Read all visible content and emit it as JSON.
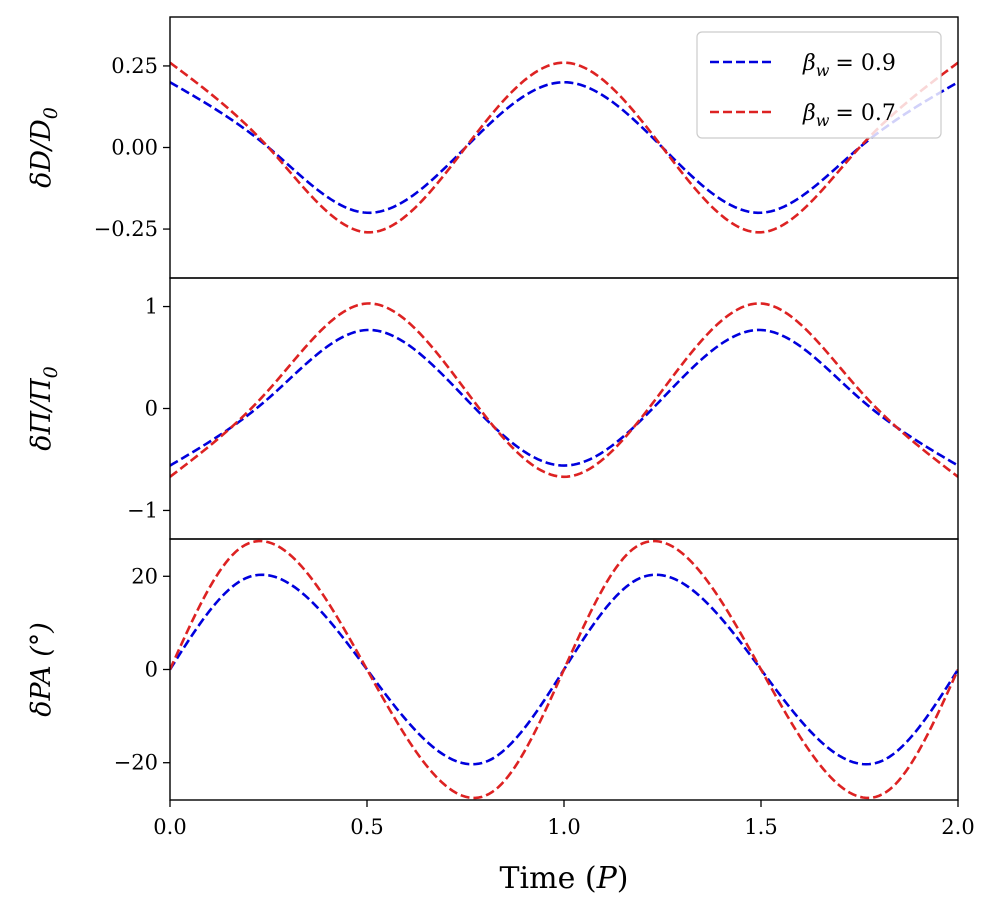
{
  "chart_data": {
    "type": "line",
    "shared_x": {
      "label": "Time (P)",
      "label_parts": {
        "pre": "Time (",
        "var": "P",
        "post": ")"
      },
      "range": [
        0.0,
        2.0
      ],
      "ticks": [
        0.0,
        0.5,
        1.0,
        1.5,
        2.0
      ],
      "tick_labels": [
        "0.0",
        "0.5",
        "1.0",
        "1.5",
        "2.0"
      ]
    },
    "series_styles": [
      {
        "name": "β_w = 0.9",
        "color": "#0000dd",
        "dash": "dashed"
      },
      {
        "name": "β_w = 0.7",
        "color": "#dd2222",
        "dash": "dashed"
      }
    ],
    "legend": {
      "placement": "top-right of top panel",
      "entries": [
        {
          "symbol": "β",
          "subscript": "w",
          "eq": "= 0.9",
          "color": "#0000dd"
        },
        {
          "symbol": "β",
          "subscript": "w",
          "eq": "= 0.7",
          "color": "#dd2222"
        }
      ]
    },
    "panels": [
      {
        "id": "dD",
        "ylabel": "δD/D₀",
        "ylabel_parts": {
          "main": "δD/D",
          "sub": "0"
        },
        "ylim": [
          -0.4,
          0.4
        ],
        "ticks": [
          -0.25,
          0.0,
          0.25
        ],
        "tick_labels": [
          "−0.25",
          "0.00",
          "0.25"
        ],
        "series": [
          {
            "name": "β_w = 0.9",
            "x": [
              0.0,
              0.25,
              0.5,
              0.75,
              1.0,
              1.25,
              1.5,
              1.75,
              2.0
            ],
            "values": [
              0.2,
              0.0,
              -0.2,
              0.0,
              0.2,
              0.0,
              -0.2,
              0.0,
              0.2
            ]
          },
          {
            "name": "β_w = 0.7",
            "x": [
              0.0,
              0.25,
              0.5,
              0.75,
              1.0,
              1.25,
              1.5,
              1.75,
              2.0
            ],
            "values": [
              0.26,
              0.0,
              -0.26,
              0.0,
              0.26,
              0.0,
              -0.26,
              0.0,
              0.26
            ]
          }
        ]
      },
      {
        "id": "dPi",
        "ylabel": "δΠ/Π₀",
        "ylabel_parts": {
          "main": "δΠ/Π",
          "sub": "0"
        },
        "ylim": [
          -1.28,
          1.28
        ],
        "ticks": [
          -1,
          0,
          1
        ],
        "tick_labels": [
          "−1",
          "0",
          "1"
        ],
        "series": [
          {
            "name": "β_w = 0.9",
            "x": [
              0.0,
              0.25,
              0.5,
              0.75,
              1.0,
              1.25,
              1.5,
              1.75,
              2.0
            ],
            "values": [
              -0.56,
              0.1,
              0.77,
              0.1,
              -0.56,
              0.1,
              0.77,
              0.1,
              -0.56
            ]
          },
          {
            "name": "β_w = 0.7",
            "x": [
              0.0,
              0.25,
              0.5,
              0.75,
              1.0,
              1.25,
              1.5,
              1.75,
              2.0
            ],
            "values": [
              -0.67,
              0.18,
              1.03,
              0.18,
              -0.67,
              0.18,
              1.03,
              0.18,
              -0.67
            ]
          }
        ]
      },
      {
        "id": "dPA",
        "ylabel": "δPA (°)",
        "ylim": [
          -28,
          28
        ],
        "ticks": [
          -20,
          0,
          20
        ],
        "tick_labels": [
          "−20",
          "0",
          "20"
        ],
        "series": [
          {
            "name": "β_w = 0.9",
            "x": [
              0.0,
              0.19,
              0.5,
              0.81,
              1.0,
              1.19,
              1.5,
              1.81,
              2.0
            ],
            "values": [
              0.0,
              19.5,
              0.0,
              -19.5,
              0.0,
              19.5,
              0.0,
              -19.5,
              0.0
            ]
          },
          {
            "name": "β_w = 0.7",
            "x": [
              0.0,
              0.17,
              0.5,
              0.83,
              1.0,
              1.17,
              1.5,
              1.83,
              2.0
            ],
            "values": [
              0.0,
              25.5,
              0.0,
              -25.5,
              0.0,
              25.5,
              0.0,
              -25.5,
              0.0
            ]
          }
        ]
      }
    ]
  }
}
